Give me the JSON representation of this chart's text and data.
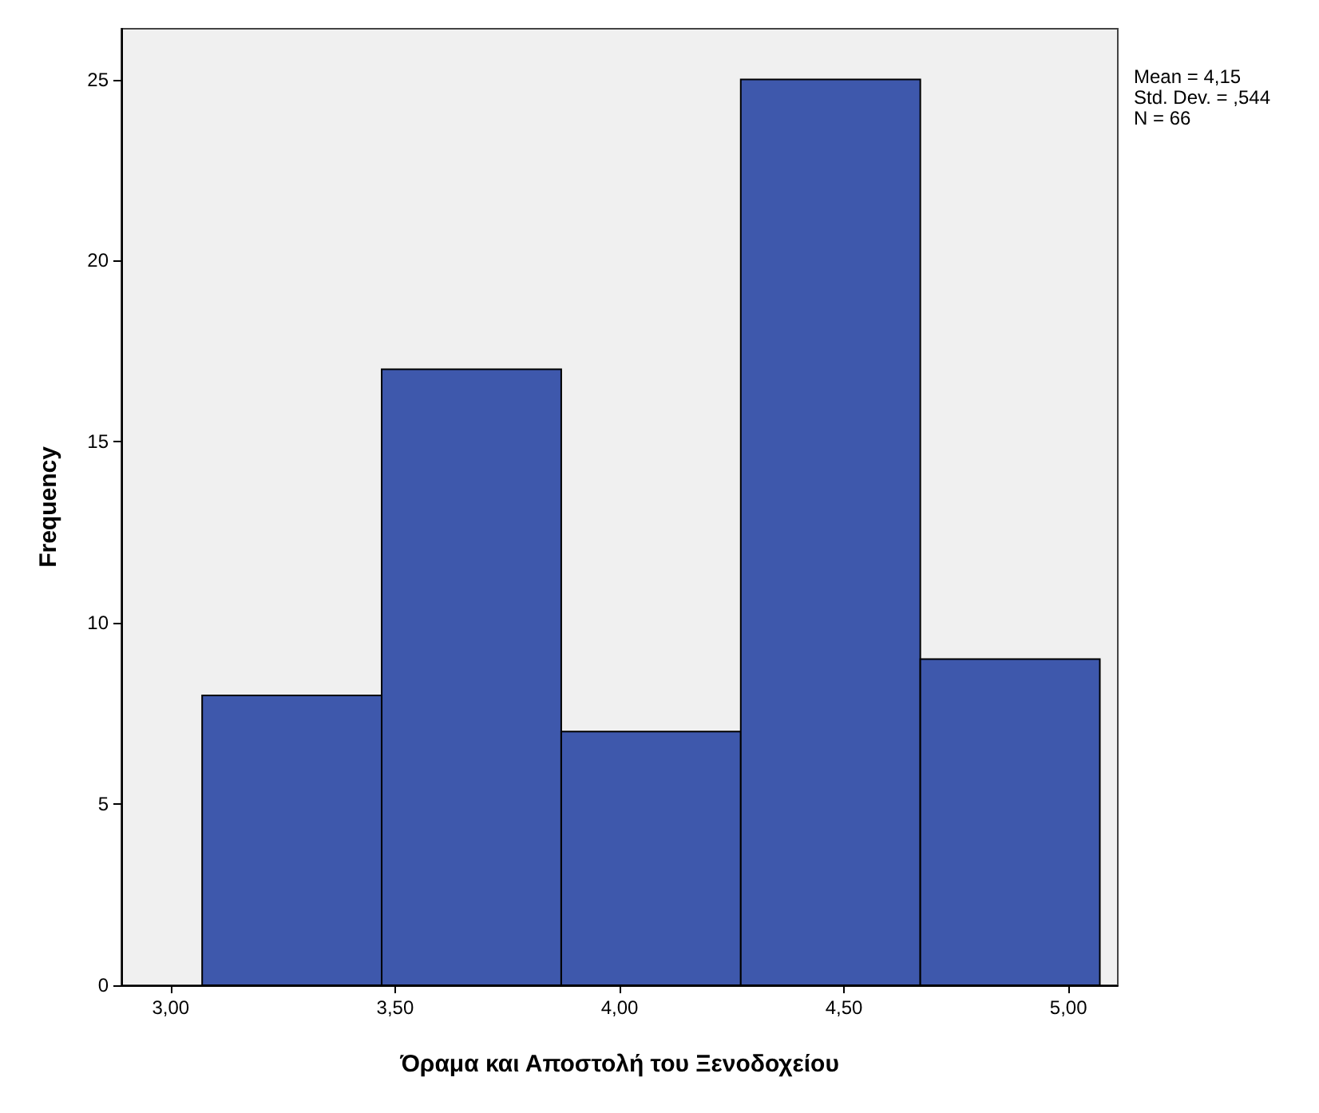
{
  "chart_data": {
    "type": "histogram",
    "xlabel": "Όραμα και Αποστολή του Ξενοδοχείου",
    "ylabel": "Frequency",
    "bins": [
      3.07,
      3.47,
      3.87,
      4.27,
      4.67,
      5.07
    ],
    "values": [
      8,
      17,
      7,
      25,
      9
    ],
    "color": "#3e58ac",
    "xlim": [
      2.89,
      5.11
    ],
    "xticks": [
      {
        "value": 3,
        "label": "3,00"
      },
      {
        "value": 3.5,
        "label": "3,50"
      },
      {
        "value": 4,
        "label": "4,00"
      },
      {
        "value": 4.5,
        "label": "4,50"
      },
      {
        "value": 5,
        "label": "5,00"
      }
    ],
    "ylim": [
      0,
      26.4
    ],
    "yticks": [
      0,
      5,
      10,
      15,
      20,
      25
    ],
    "annotations": [
      "Mean = 4,15",
      "Std. Dev. = ,544",
      "N = 66"
    ],
    "grid": false
  }
}
